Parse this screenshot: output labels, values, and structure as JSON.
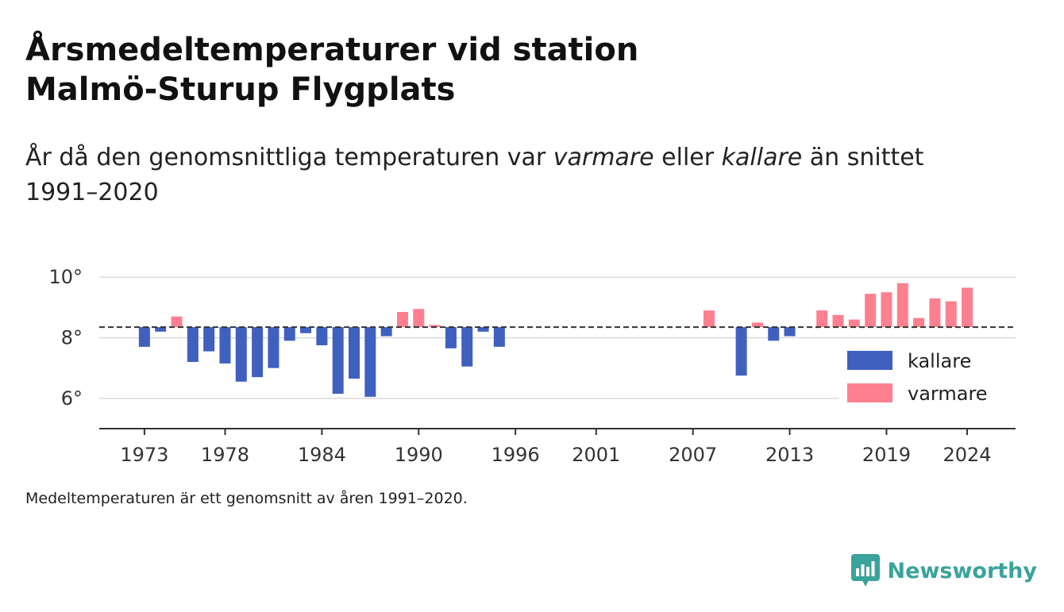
{
  "header": {
    "title_line1": "Årsmedeltemperaturer vid station",
    "title_line2": "Malmö-Sturup Flygplats",
    "subtitle_pre": "År då den genomsnittliga temperaturen var ",
    "subtitle_em1": "varmare",
    "subtitle_mid": " eller ",
    "subtitle_em2": "kallare",
    "subtitle_post": " än snittet 1991–2020"
  },
  "caption": "Medeltemperaturen är ett genomsnitt av åren 1991–2020.",
  "brand": {
    "name": "Newsworthy",
    "icon": "newsworthy-logo-icon",
    "color": "#3aa39b"
  },
  "chart_data": {
    "type": "bar",
    "reference_line": 8.35,
    "ylim": [
      5,
      10.5
    ],
    "xlim": [
      1970.2,
      2027.0
    ],
    "yticks": [
      {
        "value": 10,
        "label": "10°"
      },
      {
        "value": 8,
        "label": "8°"
      },
      {
        "value": 6,
        "label": "6°"
      }
    ],
    "xticks": [
      1973,
      1978,
      1984,
      1990,
      1996,
      2001,
      2007,
      2013,
      2019,
      2024
    ],
    "grid": true,
    "legend_position": "right",
    "colors": {
      "kallare": "#4060c0",
      "varmare": "#fe8090",
      "reference": "#333333"
    },
    "legend": [
      {
        "key": "kallare",
        "label": "kallare"
      },
      {
        "key": "varmare",
        "label": "varmare"
      }
    ],
    "values": [
      {
        "year": 1973,
        "value": 7.7
      },
      {
        "year": 1974,
        "value": 8.2
      },
      {
        "year": 1975,
        "value": 8.7
      },
      {
        "year": 1976,
        "value": 7.2
      },
      {
        "year": 1977,
        "value": 7.55
      },
      {
        "year": 1978,
        "value": 7.15
      },
      {
        "year": 1979,
        "value": 6.55
      },
      {
        "year": 1980,
        "value": 6.7
      },
      {
        "year": 1981,
        "value": 7.0
      },
      {
        "year": 1982,
        "value": 7.9
      },
      {
        "year": 1983,
        "value": 8.15
      },
      {
        "year": 1984,
        "value": 7.75
      },
      {
        "year": 1985,
        "value": 6.15
      },
      {
        "year": 1986,
        "value": 6.65
      },
      {
        "year": 1987,
        "value": 6.05
      },
      {
        "year": 1988,
        "value": 8.05
      },
      {
        "year": 1989,
        "value": 8.85
      },
      {
        "year": 1990,
        "value": 8.95
      },
      {
        "year": 1991,
        "value": 8.42
      },
      {
        "year": 1992,
        "value": 7.65
      },
      {
        "year": 1993,
        "value": 7.05
      },
      {
        "year": 1994,
        "value": 8.2
      },
      {
        "year": 1995,
        "value": 7.7
      },
      {
        "year": 2008,
        "value": 8.9
      },
      {
        "year": 2010,
        "value": 6.75
      },
      {
        "year": 2011,
        "value": 8.5
      },
      {
        "year": 2012,
        "value": 7.9
      },
      {
        "year": 2013,
        "value": 8.05
      },
      {
        "year": 2015,
        "value": 8.9
      },
      {
        "year": 2016,
        "value": 8.75
      },
      {
        "year": 2017,
        "value": 8.6
      },
      {
        "year": 2018,
        "value": 9.45
      },
      {
        "year": 2019,
        "value": 9.5
      },
      {
        "year": 2020,
        "value": 9.8
      },
      {
        "year": 2021,
        "value": 8.65
      },
      {
        "year": 2022,
        "value": 9.3
      },
      {
        "year": 2023,
        "value": 9.2
      },
      {
        "year": 2024,
        "value": 9.65
      }
    ]
  }
}
